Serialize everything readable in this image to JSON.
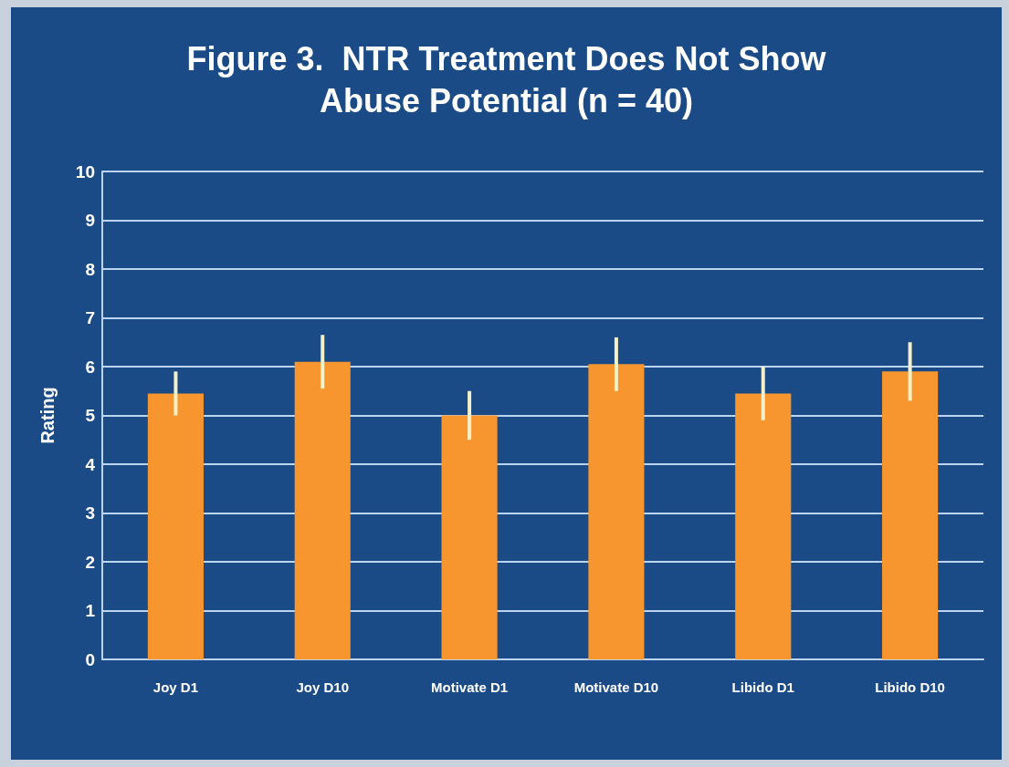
{
  "chart_data": {
    "type": "bar",
    "title": "Figure 3.  NTR Treatment Does Not Show\nAbuse Potential (n = 40)",
    "ylabel": "Rating",
    "categories": [
      "Joy D1",
      "Joy D10",
      "Motivate D1",
      "Motivate D10",
      "Libido D1",
      "Libido D10"
    ],
    "values": [
      5.45,
      6.1,
      5.0,
      6.05,
      5.45,
      5.9
    ],
    "errors": [
      0.45,
      0.55,
      0.5,
      0.55,
      0.55,
      0.6
    ],
    "color": "#f7962f",
    "ylim": [
      0,
      10
    ],
    "yticks": [
      0,
      1,
      2,
      3,
      4,
      5,
      6,
      7,
      8,
      9,
      10
    ],
    "grid": "y"
  }
}
